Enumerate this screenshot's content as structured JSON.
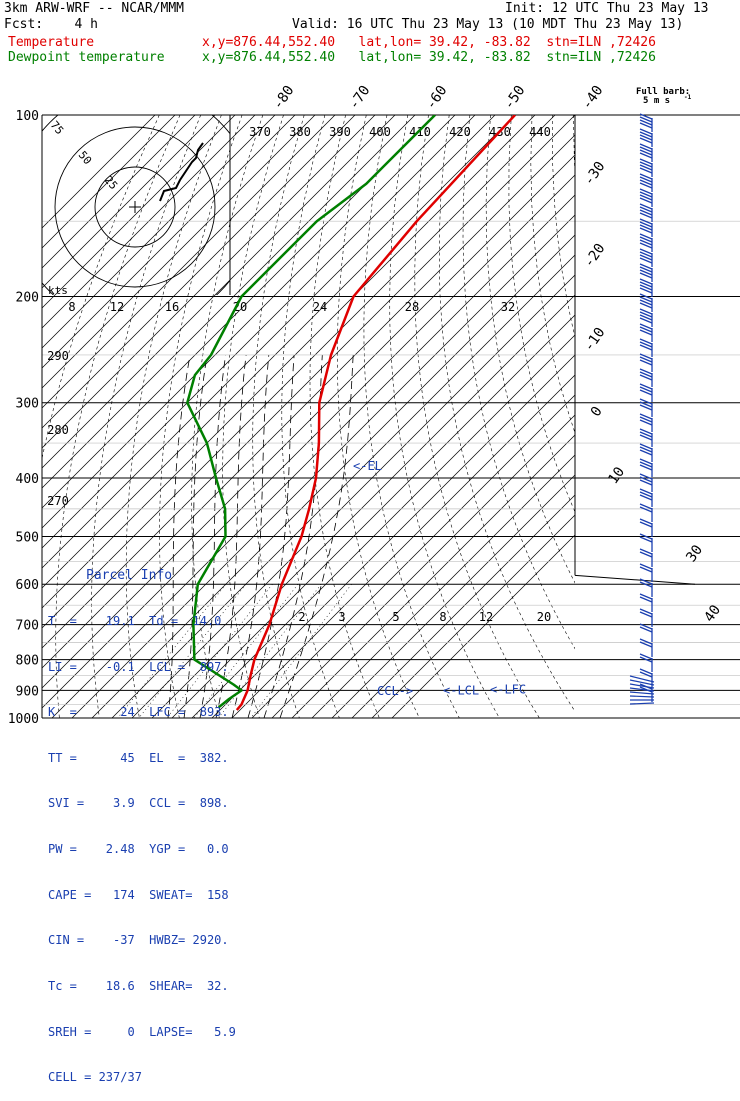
{
  "header": {
    "model": "3km ARW-WRF -- NCAR/MMM",
    "init": "Init: 12 UTC Thu 23 May 13",
    "fcst": "Fcst:    4 h",
    "valid": "Valid: 16 UTC Thu 23 May 13 (10 MDT Thu 23 May 13)",
    "temp_label": "Temperature",
    "temp_loc": "x,y=876.44,552.40   lat,lon= 39.42, -83.82  stn=ILN ,72426",
    "dew_label": "Dewpoint temperature",
    "dew_loc": "x,y=876.44,552.40   lat,lon= 39.42, -83.82  stn=ILN ,72426",
    "barb_key": "Full barb:",
    "barb_unit": "5 m s",
    "barb_unit_sup": "-1"
  },
  "parcel": {
    "title": "Parcel Info",
    "lines": [
      "T  =    19.1  Td =  14.0",
      "LI =    -0.1  LCL =  897.",
      "K  =      24  LFC =  893.",
      "TT =      45  EL  =  382.",
      "SVI =    3.9  CCL =  898.",
      "PW =    2.48  YGP =   0.0",
      "CAPE =   174  SWEAT=  158",
      "CIN =    -37  HWBZ= 2920.",
      "Tc =    18.6  SHEAR=  32.",
      "SREH =     0  LAPSE=   5.9",
      "CELL = 237/37"
    ]
  },
  "chart_data": {
    "type": "skew-t",
    "pressure_levels": [
      "100",
      "200",
      "300",
      "400",
      "500",
      "600",
      "700",
      "800",
      "900",
      "1000"
    ],
    "isotherm_labels": [
      "-80",
      "-70",
      "-60",
      "-50",
      "-40",
      "-30",
      "-20",
      "-10",
      "0",
      "10",
      "30",
      "40"
    ],
    "adiabat_labels_top": [
      "370",
      "380",
      "390",
      "400",
      "410",
      "420",
      "430",
      "440"
    ],
    "adiabat_labels_left": [
      "290",
      "280",
      "270"
    ],
    "mixing_ratio_labels": [
      "2",
      "3",
      "5",
      "8",
      "12",
      "20"
    ],
    "hodograph": {
      "speed_labels": [
        "8",
        "12",
        "16",
        "20",
        "24",
        "28",
        "32"
      ],
      "unit": "kts",
      "ring_labels": [
        "25",
        "50",
        "75"
      ]
    },
    "annotations": {
      "el": "<-EL",
      "ccl": "CCL->",
      "lcl": "<-LCL",
      "lfc": "<-LFC"
    },
    "temperature": {
      "name": "Temperature",
      "color": "#e00000",
      "points": [
        [
          100,
          -60
        ],
        [
          150,
          -58
        ],
        [
          200,
          -55
        ],
        [
          250,
          -46
        ],
        [
          300,
          -37
        ],
        [
          350,
          -27
        ],
        [
          400,
          -19
        ],
        [
          450,
          -13
        ],
        [
          500,
          -8
        ],
        [
          600,
          -1
        ],
        [
          700,
          6
        ],
        [
          800,
          11
        ],
        [
          850,
          14
        ],
        [
          900,
          17
        ],
        [
          950,
          19
        ],
        [
          970,
          19.2
        ]
      ]
    },
    "dewpoint": {
      "name": "Dewpoint temperature",
      "color": "#008000",
      "points": [
        [
          100,
          -80
        ],
        [
          130,
          -80
        ],
        [
          150,
          -83
        ],
        [
          200,
          -83
        ],
        [
          250,
          -76
        ],
        [
          270,
          -75
        ],
        [
          300,
          -70
        ],
        [
          350,
          -55
        ],
        [
          400,
          -44
        ],
        [
          450,
          -34
        ],
        [
          500,
          -27
        ],
        [
          600,
          -22
        ],
        [
          700,
          -13
        ],
        [
          800,
          -4
        ],
        [
          880,
          12
        ],
        [
          900,
          15.5
        ],
        [
          930,
          14.5
        ],
        [
          960,
          14
        ]
      ]
    },
    "wind_barbs_color": "#1a3fb0"
  }
}
